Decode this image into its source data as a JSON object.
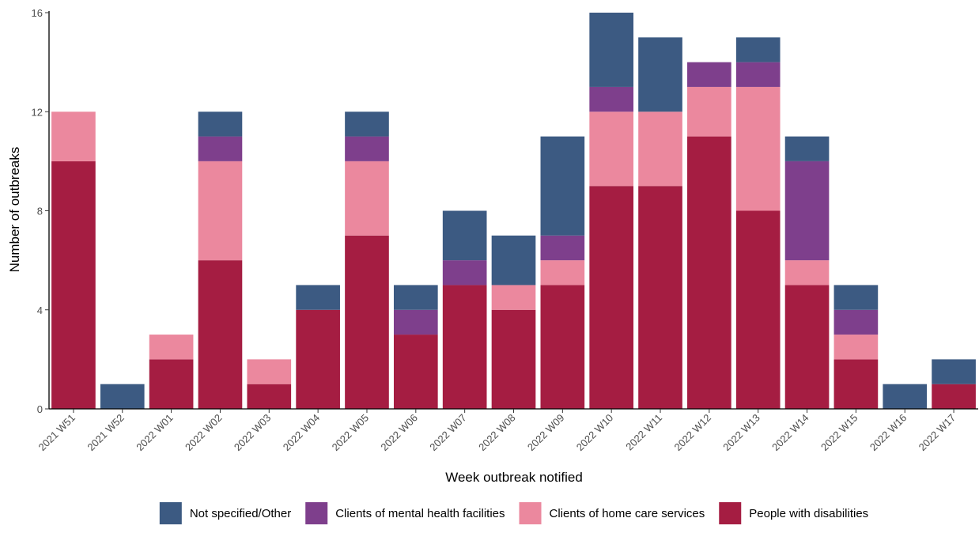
{
  "chart_data": {
    "type": "bar",
    "stacked": true,
    "title": "",
    "xlabel": "Week outbreak notified",
    "ylabel": "Number of outbreaks",
    "ylim": [
      0,
      16
    ],
    "yticks": [
      0,
      4,
      8,
      12,
      16
    ],
    "grid": false,
    "legend_position": "bottom",
    "categories": [
      "2021 W51",
      "2021 W52",
      "2022 W01",
      "2022 W02",
      "2022 W03",
      "2022 W04",
      "2022 W05",
      "2022 W06",
      "2022 W07",
      "2022 W08",
      "2022 W09",
      "2022 W10",
      "2022 W11",
      "2022 W12",
      "2022 W13",
      "2022 W14",
      "2022 W15",
      "2022 W16",
      "2022 W17"
    ],
    "series": [
      {
        "name": "People with disabilities",
        "color": "#A51D42",
        "values": [
          10,
          0,
          2,
          6,
          1,
          4,
          7,
          3,
          5,
          4,
          5,
          9,
          9,
          11,
          8,
          5,
          2,
          0,
          1
        ]
      },
      {
        "name": "Clients of home care services",
        "color": "#EB889E",
        "values": [
          2,
          0,
          1,
          4,
          1,
          0,
          3,
          0,
          0,
          1,
          1,
          3,
          3,
          2,
          5,
          1,
          1,
          0,
          0
        ]
      },
      {
        "name": "Clients of mental health facilities",
        "color": "#7E3F8C",
        "values": [
          0,
          0,
          0,
          1,
          0,
          0,
          1,
          1,
          1,
          0,
          1,
          1,
          0,
          1,
          1,
          4,
          1,
          0,
          0
        ]
      },
      {
        "name": "Not specified/Other",
        "color": "#3C5A82",
        "values": [
          0,
          1,
          0,
          1,
          0,
          1,
          1,
          1,
          2,
          2,
          4,
          3,
          3,
          0,
          1,
          1,
          1,
          1,
          1
        ]
      }
    ],
    "legend_order": [
      "Not specified/Other",
      "Clients of mental health facilities",
      "Clients of home care services",
      "People with disabilities"
    ]
  }
}
